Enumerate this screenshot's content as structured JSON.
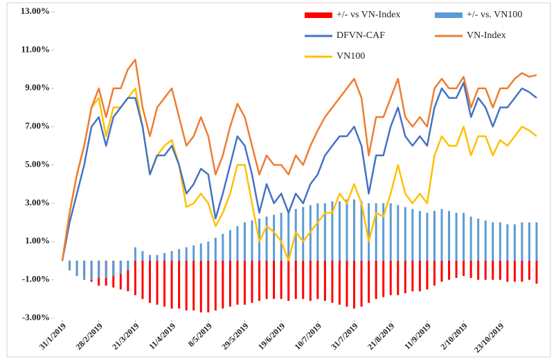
{
  "chart_data": {
    "type": "bar",
    "categories": [
      "31/1/2019",
      null,
      null,
      null,
      null,
      "28/2/2019",
      null,
      null,
      null,
      null,
      "21/3/2019",
      null,
      null,
      null,
      null,
      "11/4/2019",
      null,
      null,
      null,
      null,
      "8/5/2019",
      null,
      null,
      null,
      null,
      "29/5/2019",
      null,
      null,
      null,
      null,
      "19/6/2019",
      null,
      null,
      null,
      null,
      "10/7/2019",
      null,
      null,
      null,
      null,
      "31/7/2019",
      null,
      null,
      null,
      null,
      "21/8/2019",
      null,
      null,
      null,
      null,
      "11/9/2019",
      null,
      null,
      null,
      null,
      "2/10/2019",
      null,
      null,
      null,
      null,
      "23/10/2019",
      null,
      null,
      null,
      null,
      null
    ],
    "ylim": [
      -3,
      13
    ],
    "yticks": [
      {
        "value": 13,
        "label": "13.00%"
      },
      {
        "value": 11,
        "label": "11.00%"
      },
      {
        "value": 9,
        "label": "9.00%"
      },
      {
        "value": 7,
        "label": "7.00%"
      },
      {
        "value": 5,
        "label": "5.00%"
      },
      {
        "value": 3,
        "label": "3.00%"
      },
      {
        "value": 1,
        "label": "1.00%"
      },
      {
        "value": -1,
        "label": "-1.00%"
      },
      {
        "value": -3,
        "label": "-3.00%"
      }
    ],
    "series": [
      {
        "name": "+/- vs VN-Index",
        "type": "bar",
        "color": "#ff0000",
        "values": [
          0,
          -0.5,
          -0.8,
          -1.0,
          -1.1,
          -1.3,
          -1.3,
          -1.4,
          -1.5,
          -1.6,
          -1.8,
          -2.0,
          -2.2,
          -2.3,
          -2.4,
          -2.5,
          -2.5,
          -2.6,
          -2.6,
          -2.7,
          -2.7,
          -2.6,
          -2.5,
          -2.4,
          -2.3,
          -2.3,
          -2.2,
          -2.1,
          -2.0,
          -2.0,
          -2.0,
          -2.1,
          -2.0,
          -2.0,
          -2.1,
          -2.0,
          -2.1,
          -2.2,
          -2.3,
          -2.4,
          -2.5,
          -2.4,
          -2.2,
          -2.0,
          -1.9,
          -1.8,
          -1.8,
          -1.7,
          -1.6,
          -1.6,
          -1.5,
          -1.3,
          -1.1,
          -1.0,
          -0.9,
          -0.8,
          -0.9,
          -1.0,
          -1.0,
          -1.0,
          -1.0,
          -1.1,
          -1.1,
          -1.1,
          -1.0,
          -1.2
        ]
      },
      {
        "name": "+/- vs. VN100",
        "type": "bar",
        "color": "#5b9bd5",
        "values": [
          0,
          -0.5,
          -0.8,
          -1.0,
          -1.0,
          -0.9,
          -0.9,
          -0.8,
          -0.7,
          -0.5,
          0.7,
          0.5,
          0.3,
          0.3,
          0.4,
          0.5,
          0.6,
          0.7,
          0.8,
          0.9,
          1.0,
          1.2,
          1.4,
          1.6,
          1.8,
          2.0,
          2.1,
          2.2,
          2.3,
          2.4,
          2.5,
          2.6,
          2.7,
          2.8,
          2.9,
          3.0,
          3.0,
          3.1,
          3.1,
          3.2,
          3.2,
          3.1,
          3.0,
          3.0,
          3.0,
          3.0,
          2.9,
          2.8,
          2.7,
          2.6,
          2.5,
          2.6,
          2.7,
          2.6,
          2.5,
          2.5,
          2.3,
          2.2,
          2.1,
          2.0,
          2.0,
          1.9,
          1.9,
          2.0,
          2.0,
          2.0
        ]
      },
      {
        "name": "DFVN-CAF",
        "type": "line",
        "color": "#4472c4",
        "values": [
          0,
          2.0,
          3.5,
          5.0,
          7.0,
          7.5,
          6.0,
          7.5,
          8.0,
          8.5,
          8.5,
          7.0,
          4.5,
          5.5,
          5.5,
          6.0,
          5.0,
          3.5,
          4.0,
          4.8,
          4.5,
          2.2,
          3.5,
          5.0,
          6.5,
          6.0,
          4.5,
          2.5,
          4.0,
          3.0,
          3.5,
          2.5,
          3.5,
          3.0,
          4.0,
          4.5,
          5.5,
          6.0,
          6.5,
          6.5,
          7.0,
          6.0,
          3.5,
          5.5,
          5.5,
          7.0,
          8.0,
          6.5,
          6.0,
          6.5,
          6.0,
          8.0,
          9.0,
          8.5,
          8.5,
          9.3,
          7.5,
          8.5,
          8.0,
          7.0,
          8.0,
          8.0,
          8.5,
          9.0,
          8.8,
          8.5
        ]
      },
      {
        "name": "VN-Index",
        "type": "line",
        "color": "#ed7d31",
        "values": [
          0,
          2.5,
          4.5,
          6.0,
          8.0,
          9.0,
          7.5,
          9.0,
          9.0,
          10.0,
          10.5,
          8.0,
          6.5,
          8.0,
          8.5,
          9.0,
          7.5,
          6.0,
          6.5,
          7.5,
          6.5,
          4.5,
          5.5,
          7.0,
          8.2,
          7.5,
          6.0,
          4.5,
          5.5,
          5.0,
          5.0,
          4.5,
          5.5,
          5.0,
          6.0,
          6.8,
          7.5,
          8.0,
          8.5,
          9.0,
          9.5,
          8.5,
          5.5,
          7.5,
          7.5,
          8.5,
          9.5,
          7.5,
          7.0,
          7.5,
          7.0,
          9.0,
          9.5,
          9.0,
          9.0,
          9.6,
          8.0,
          9.0,
          9.0,
          8.0,
          9.0,
          9.0,
          9.5,
          9.8,
          9.6,
          9.7
        ]
      },
      {
        "name": "VN100",
        "type": "line",
        "color": "#ffc000",
        "values": [
          0,
          2.5,
          4.5,
          6.0,
          8.0,
          8.5,
          6.5,
          8.0,
          8.0,
          8.5,
          9.0,
          7.0,
          4.5,
          5.5,
          6.0,
          6.3,
          5.0,
          2.8,
          3.0,
          3.5,
          3.0,
          1.8,
          2.5,
          3.5,
          5.0,
          5.0,
          3.0,
          1.0,
          1.8,
          1.5,
          1.0,
          0.0,
          1.5,
          1.0,
          1.5,
          2.0,
          2.5,
          2.5,
          3.5,
          3.0,
          4.0,
          3.0,
          1.0,
          2.5,
          2.3,
          3.5,
          5.0,
          3.5,
          3.0,
          3.5,
          3.0,
          5.5,
          6.5,
          6.0,
          6.0,
          7.0,
          5.5,
          6.5,
          6.5,
          5.5,
          6.3,
          6.0,
          6.5,
          7.0,
          6.8,
          6.5
        ]
      }
    ]
  }
}
